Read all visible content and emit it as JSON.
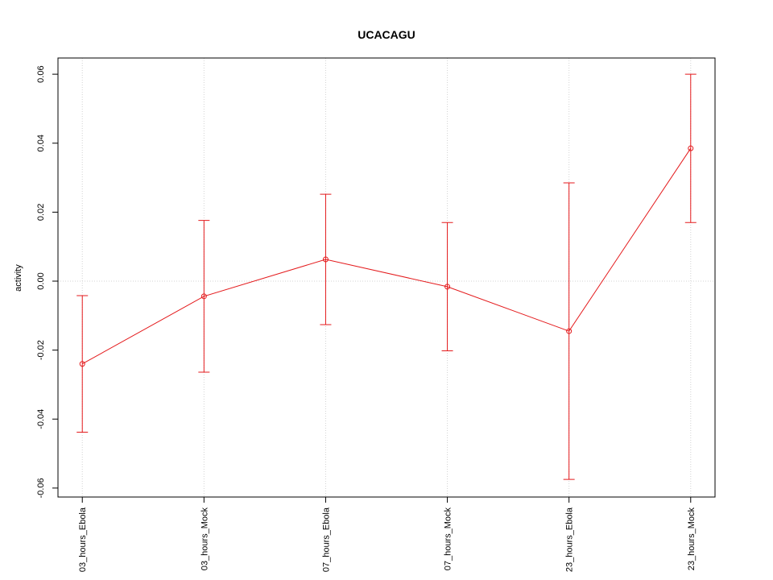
{
  "chart_data": {
    "type": "line",
    "title": "UCACAGU",
    "y_label": "activity",
    "categories": [
      "03_hours_Ebola",
      "03_hours_Mock",
      "07_hours_Ebola",
      "07_hours_Mock",
      "23_hours_Ebola",
      "23_hours_Mock"
    ],
    "series": [
      {
        "color": "#e41a1c",
        "values": [
          -0.024,
          -0.0044,
          0.0063,
          -0.0016,
          -0.0145,
          0.0385
        ],
        "errors": [
          0.0198,
          0.022,
          0.0189,
          0.0186,
          0.043,
          0.0215
        ]
      }
    ],
    "ylim": [
      -0.0626,
      0.0647
    ],
    "yticks": [
      -0.06,
      -0.04,
      -0.02,
      {
        "value": 0,
        "label": "0.00"
      },
      0.02,
      0.04,
      0.06
    ],
    "grid": true,
    "reference_line": 0
  }
}
